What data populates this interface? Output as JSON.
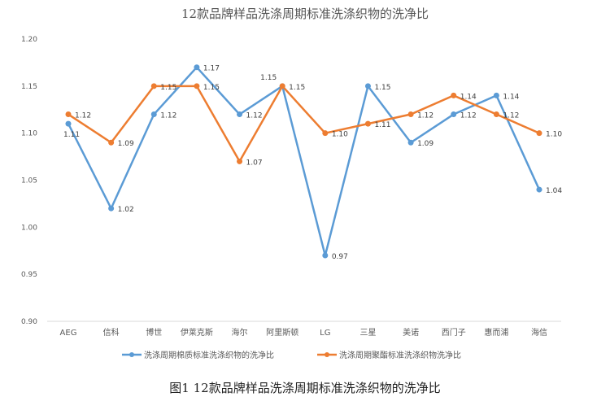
{
  "chart_data": {
    "type": "line",
    "title": "12款品牌样品洗涤周期标准洗涤织物的洗净比",
    "caption": "图1 12款品牌样品洗涤周期标准洗涤织物的洗净比",
    "categories": [
      "AEG",
      "信科",
      "博世",
      "伊莱克斯",
      "海尔",
      "阿里斯顿",
      "LG",
      "三星",
      "美诺",
      "西门子",
      "惠而浦",
      "海信"
    ],
    "ylim": [
      0.9,
      1.2
    ],
    "yticks": [
      "0.90",
      "0.95",
      "1.00",
      "1.05",
      "1.10",
      "1.15",
      "1.20"
    ],
    "grid": false,
    "legend_position": "bottom",
    "series": [
      {
        "name": "洗涤周期棉质标准洗涤织物的洗净比",
        "color": "#5b9bd5",
        "values": [
          1.11,
          1.02,
          1.12,
          1.17,
          1.12,
          1.15,
          0.97,
          1.15,
          1.09,
          1.12,
          1.14,
          1.04
        ]
      },
      {
        "name": "洗涤周期聚酯标准洗涤织物洗净比",
        "color": "#ed7d31",
        "values": [
          1.12,
          1.09,
          1.15,
          1.15,
          1.07,
          1.15,
          1.1,
          1.11,
          1.12,
          1.14,
          1.12,
          1.1
        ]
      }
    ]
  }
}
